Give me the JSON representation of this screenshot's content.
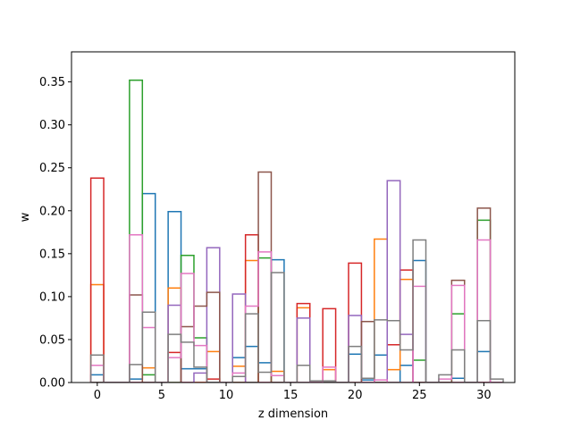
{
  "chart_data": {
    "type": "bar",
    "style": "step-outline",
    "xlabel": "z dimension",
    "ylabel": "w",
    "xlim": [
      -2.0,
      32.4
    ],
    "ylim": [
      0.0,
      0.385
    ],
    "bin_width": 1.0,
    "grid": false,
    "legend": "none",
    "x_ticks": [
      0,
      5,
      10,
      15,
      20,
      25,
      30
    ],
    "y_ticks": [
      0.0,
      0.05,
      0.1,
      0.15,
      0.2,
      0.25,
      0.3,
      0.35
    ],
    "x_tick_labels": [
      "0",
      "5",
      "10",
      "15",
      "20",
      "25",
      "30"
    ],
    "y_tick_labels": [
      "0.00",
      "0.05",
      "0.10",
      "0.15",
      "0.20",
      "0.25",
      "0.30",
      "0.35"
    ],
    "x": [
      0,
      1,
      2,
      3,
      4,
      5,
      6,
      7,
      8,
      9,
      10,
      11,
      12,
      13,
      14,
      15,
      16,
      17,
      18,
      19,
      20,
      21,
      22,
      23,
      24,
      25,
      26,
      27,
      28,
      29,
      30,
      31
    ],
    "series": [
      {
        "color": "#1f77b4",
        "values": [
          0.009,
          0,
          0,
          0.004,
          0.22,
          0,
          0.199,
          0.016,
          0.016,
          0,
          0,
          0.029,
          0.042,
          0.023,
          0.143,
          0,
          0,
          0,
          0,
          0,
          0.033,
          0.003,
          0.032,
          0,
          0.02,
          0.142,
          0,
          0,
          0.005,
          0,
          0.036,
          0
        ]
      },
      {
        "color": "#ff7f0e",
        "values": [
          0.114,
          0,
          0,
          0,
          0.017,
          0,
          0.11,
          0,
          0,
          0.036,
          0,
          0.019,
          0.142,
          0,
          0.013,
          0,
          0.087,
          0,
          0.015,
          0,
          0,
          0,
          0.167,
          0.015,
          0.12,
          0,
          0,
          0,
          0,
          0,
          0,
          0
        ]
      },
      {
        "color": "#2ca02c",
        "values": [
          0,
          0,
          0,
          0.352,
          0.009,
          0,
          0,
          0.148,
          0.052,
          0,
          0,
          0,
          0,
          0.145,
          0,
          0,
          0,
          0,
          0,
          0,
          0,
          0,
          0,
          0,
          0,
          0.026,
          0,
          0,
          0.08,
          0,
          0.189,
          0
        ]
      },
      {
        "color": "#d62728",
        "values": [
          0.238,
          0,
          0,
          0,
          0,
          0,
          0.035,
          0,
          0,
          0.004,
          0,
          0,
          0.172,
          0,
          0,
          0,
          0.092,
          0,
          0.086,
          0,
          0.139,
          0,
          0,
          0.044,
          0.131,
          0,
          0,
          0,
          0,
          0,
          0,
          0
        ]
      },
      {
        "color": "#9467bd",
        "values": [
          0,
          0,
          0,
          0,
          0,
          0,
          0.09,
          0,
          0.011,
          0.157,
          0,
          0.103,
          0,
          0,
          0,
          0,
          0.075,
          0,
          0,
          0,
          0.078,
          0,
          0,
          0.235,
          0.056,
          0,
          0,
          0,
          0,
          0,
          0,
          0
        ]
      },
      {
        "color": "#8c564b",
        "values": [
          0,
          0,
          0,
          0.102,
          0,
          0,
          0,
          0.065,
          0.089,
          0.105,
          0,
          0,
          0,
          0.245,
          0,
          0,
          0,
          0,
          0,
          0,
          0,
          0.071,
          0,
          0,
          0,
          0,
          0,
          0,
          0.119,
          0,
          0.203,
          0
        ]
      },
      {
        "color": "#e377c2",
        "values": [
          0.02,
          0,
          0,
          0.172,
          0.064,
          0,
          0.029,
          0.127,
          0.043,
          0,
          0,
          0.011,
          0.089,
          0.152,
          0.008,
          0,
          0,
          0,
          0.018,
          0,
          0,
          0,
          0.003,
          0,
          0,
          0.112,
          0,
          0.004,
          0.113,
          0,
          0.166,
          0
        ]
      },
      {
        "color": "#7f7f7f",
        "values": [
          0.032,
          0,
          0,
          0.021,
          0.082,
          0,
          0.056,
          0.047,
          0.018,
          0,
          0,
          0.007,
          0.08,
          0.012,
          0.128,
          0,
          0.02,
          0.002,
          0.002,
          0,
          0.042,
          0.005,
          0.073,
          0.072,
          0.038,
          0.166,
          0,
          0.009,
          0.038,
          0,
          0.072,
          0.004
        ]
      }
    ]
  }
}
